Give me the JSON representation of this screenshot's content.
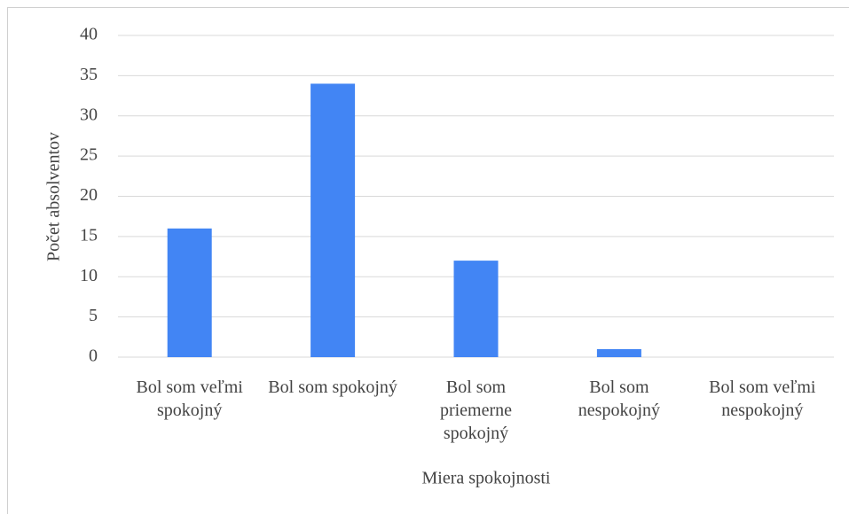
{
  "chart_data": {
    "type": "bar",
    "categories": [
      "Bol som veľmi spokojný",
      "Bol som spokojný",
      "Bol som priemerne spokojný",
      "Bol som nespokojný",
      "Bol som veľmi nespokojný"
    ],
    "values": [
      16,
      34,
      12,
      1,
      0
    ],
    "color": "#4285f4",
    "xlabel": "Miera spokojnosti",
    "ylabel": "Počet absolventov",
    "ylim": [
      0,
      40
    ],
    "yticks": [
      0,
      5,
      10,
      15,
      20,
      25,
      30,
      35,
      40
    ],
    "grid": true
  }
}
